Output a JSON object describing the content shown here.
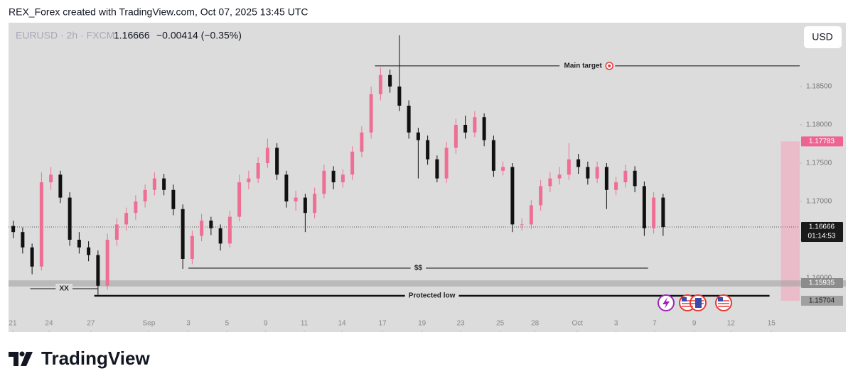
{
  "header": {
    "credit": "REX_Forex created with TradingView.com, Oct 07, 2025 13:45 UTC"
  },
  "chart_data": {
    "type": "candlestick",
    "symbol": "EURUSD · 2h · FXCM",
    "last": "1.16666",
    "change": "−0.00414 (−0.35%)",
    "currency": "USD",
    "up_color": "#ef6f94",
    "down_color": "#111111",
    "xlim": [
      0,
      84
    ],
    "ylim": [
      1.155,
      1.19333
    ],
    "xticks": [
      {
        "value": 0.45,
        "label": "21"
      },
      {
        "value": 4.3,
        "label": "24"
      },
      {
        "value": 8.75,
        "label": "27"
      },
      {
        "value": 14.9,
        "label": "Sep"
      },
      {
        "value": 19.1,
        "label": "3"
      },
      {
        "value": 23.2,
        "label": "5"
      },
      {
        "value": 27.3,
        "label": "9"
      },
      {
        "value": 31.4,
        "label": "11"
      },
      {
        "value": 35.4,
        "label": "14"
      },
      {
        "value": 39.7,
        "label": "17"
      },
      {
        "value": 43.9,
        "label": "19"
      },
      {
        "value": 48.0,
        "label": "23"
      },
      {
        "value": 52.2,
        "label": "25"
      },
      {
        "value": 55.9,
        "label": "28"
      },
      {
        "value": 60.4,
        "label": "Oct"
      },
      {
        "value": 64.5,
        "label": "3"
      },
      {
        "value": 68.6,
        "label": "7"
      },
      {
        "value": 72.8,
        "label": "9"
      },
      {
        "value": 76.7,
        "label": "12"
      },
      {
        "value": 81.0,
        "label": "15"
      }
    ],
    "yticks": [
      {
        "value": 1.185,
        "label": "1.18500"
      },
      {
        "value": 1.18,
        "label": "1.18000"
      },
      {
        "value": 1.175,
        "label": "1.17500"
      },
      {
        "value": 1.17,
        "label": "1.17000"
      },
      {
        "value": 1.165,
        "label": "1.16500"
      },
      {
        "value": 1.16,
        "label": "1.16000"
      }
    ],
    "candles": [
      [
        1.1668,
        1.1675,
        1.1652,
        1.166
      ],
      [
        1.166,
        1.1666,
        1.1632,
        1.164
      ],
      [
        1.164,
        1.1645,
        1.1605,
        1.1615
      ],
      [
        1.1615,
        1.1738,
        1.161,
        1.1725
      ],
      [
        1.1725,
        1.1745,
        1.1715,
        1.1735
      ],
      [
        1.1735,
        1.174,
        1.1698,
        1.1705
      ],
      [
        1.1705,
        1.1712,
        1.1642,
        1.165
      ],
      [
        1.165,
        1.166,
        1.1632,
        1.164
      ],
      [
        1.164,
        1.1648,
        1.1622,
        1.163
      ],
      [
        1.163,
        1.1636,
        1.1578,
        1.159
      ],
      [
        1.159,
        1.1658,
        1.1585,
        1.165
      ],
      [
        1.165,
        1.1678,
        1.1642,
        1.167
      ],
      [
        1.167,
        1.1692,
        1.1662,
        1.1685
      ],
      [
        1.1685,
        1.1708,
        1.1676,
        1.17
      ],
      [
        1.17,
        1.1722,
        1.1692,
        1.1715
      ],
      [
        1.1715,
        1.1738,
        1.1708,
        1.173
      ],
      [
        1.173,
        1.1736,
        1.1708,
        1.1715
      ],
      [
        1.1715,
        1.1722,
        1.1682,
        1.169
      ],
      [
        1.169,
        1.1696,
        1.1612,
        1.1625
      ],
      [
        1.1625,
        1.1662,
        1.1618,
        1.1655
      ],
      [
        1.1655,
        1.1684,
        1.1648,
        1.1675
      ],
      [
        1.1675,
        1.168,
        1.1656,
        1.1665
      ],
      [
        1.1665,
        1.167,
        1.1636,
        1.1645
      ],
      [
        1.1645,
        1.1688,
        1.164,
        1.168
      ],
      [
        1.168,
        1.1735,
        1.1674,
        1.1725
      ],
      [
        1.1725,
        1.174,
        1.1716,
        1.173
      ],
      [
        1.173,
        1.1758,
        1.1724,
        1.175
      ],
      [
        1.175,
        1.1782,
        1.1744,
        1.177
      ],
      [
        1.177,
        1.1776,
        1.1728,
        1.1735
      ],
      [
        1.1735,
        1.174,
        1.1692,
        1.17
      ],
      [
        1.17,
        1.1714,
        1.1688,
        1.1705
      ],
      [
        1.1705,
        1.171,
        1.166,
        1.1685
      ],
      [
        1.1685,
        1.1718,
        1.1678,
        1.171
      ],
      [
        1.171,
        1.1748,
        1.1704,
        1.174
      ],
      [
        1.174,
        1.1746,
        1.1716,
        1.1725
      ],
      [
        1.1725,
        1.1742,
        1.1718,
        1.1735
      ],
      [
        1.1735,
        1.1772,
        1.1728,
        1.1765
      ],
      [
        1.1765,
        1.1798,
        1.1758,
        1.179
      ],
      [
        1.179,
        1.185,
        1.1782,
        1.184
      ],
      [
        1.184,
        1.1875,
        1.1832,
        1.1865
      ],
      [
        1.1865,
        1.1872,
        1.1842,
        1.185
      ],
      [
        1.185,
        1.1917,
        1.1818,
        1.1825
      ],
      [
        1.1825,
        1.1832,
        1.1782,
        1.179
      ],
      [
        1.179,
        1.1796,
        1.173,
        1.178
      ],
      [
        1.178,
        1.1786,
        1.1748,
        1.1755
      ],
      [
        1.1755,
        1.176,
        1.1725,
        1.173
      ],
      [
        1.173,
        1.1778,
        1.1724,
        1.177
      ],
      [
        1.177,
        1.1808,
        1.1762,
        1.18
      ],
      [
        1.18,
        1.1812,
        1.1782,
        1.179
      ],
      [
        1.179,
        1.1818,
        1.1784,
        1.181
      ],
      [
        1.181,
        1.1815,
        1.1772,
        1.178
      ],
      [
        1.178,
        1.1786,
        1.1732,
        1.174
      ],
      [
        1.174,
        1.1752,
        1.1734,
        1.1745
      ],
      [
        1.1745,
        1.175,
        1.166,
        1.167
      ],
      [
        1.167,
        1.1678,
        1.1662,
        1.167
      ],
      [
        1.167,
        1.1702,
        1.1664,
        1.1695
      ],
      [
        1.1695,
        1.1728,
        1.1688,
        1.172
      ],
      [
        1.172,
        1.1738,
        1.1712,
        1.173
      ],
      [
        1.173,
        1.1745,
        1.1722,
        1.1735
      ],
      [
        1.1735,
        1.1776,
        1.1728,
        1.1755
      ],
      [
        1.1755,
        1.1762,
        1.1736,
        1.1745
      ],
      [
        1.1745,
        1.1752,
        1.1722,
        1.173
      ],
      [
        1.173,
        1.1752,
        1.1724,
        1.1745
      ],
      [
        1.1745,
        1.175,
        1.169,
        1.1715
      ],
      [
        1.1715,
        1.1732,
        1.1708,
        1.1725
      ],
      [
        1.1725,
        1.1748,
        1.1718,
        1.174
      ],
      [
        1.174,
        1.1746,
        1.1712,
        1.172
      ],
      [
        1.172,
        1.1726,
        1.1655,
        1.1665
      ],
      [
        1.1665,
        1.1712,
        1.1658,
        1.1705
      ],
      [
        1.1705,
        1.171,
        1.1655,
        1.16666
      ]
    ],
    "annotations": [
      {
        "label": "Main target",
        "value": 1.18769,
        "x": [
          38.9,
          84
        ],
        "width": 1
      },
      {
        "label": "$$",
        "value": 1.1613,
        "x": [
          19.1,
          67.9
        ],
        "width": 1
      },
      {
        "label": "XX",
        "value": 1.15861,
        "x": [
          2.3,
          9.5
        ],
        "width": 1
      },
      {
        "label": "Protected low",
        "value": 1.15769,
        "x": [
          9.1,
          80.8
        ],
        "width": 2.5
      }
    ],
    "zone": {
      "top": 1.1597,
      "bottom": 1.1589,
      "label": 1.15935
    },
    "position": {
      "top": 1.17783,
      "bottom": 1.15704,
      "x": [
        82,
        84
      ]
    },
    "current": {
      "value": 1.16666,
      "countdown": "01:14:53"
    }
  },
  "footer": {
    "brand": "TradingView"
  }
}
